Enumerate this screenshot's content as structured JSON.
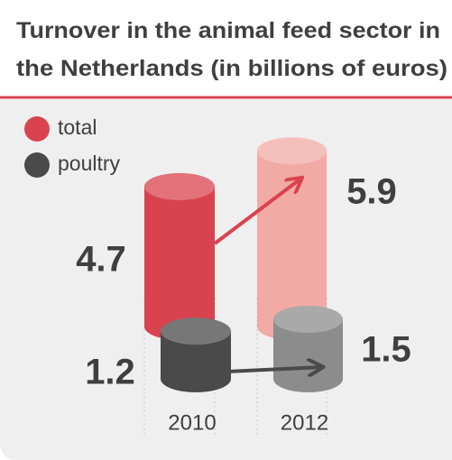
{
  "chart_data": {
    "type": "cylinder",
    "title": [
      "Turnover in the animal feed sector in",
      "the Netherlands (in billions of euros)"
    ],
    "categories": [
      "2010",
      "2012"
    ],
    "series": [
      {
        "name": "total",
        "color": "#d9434f",
        "colors": [
          "#d9434f",
          "#f2aaa5"
        ],
        "values": [
          4.7,
          5.9
        ]
      },
      {
        "name": "poultry",
        "color": "#4a4a4a",
        "colors": [
          "#4a4a4a",
          "#8c8c8c"
        ],
        "values": [
          1.2,
          1.5
        ]
      }
    ]
  }
}
